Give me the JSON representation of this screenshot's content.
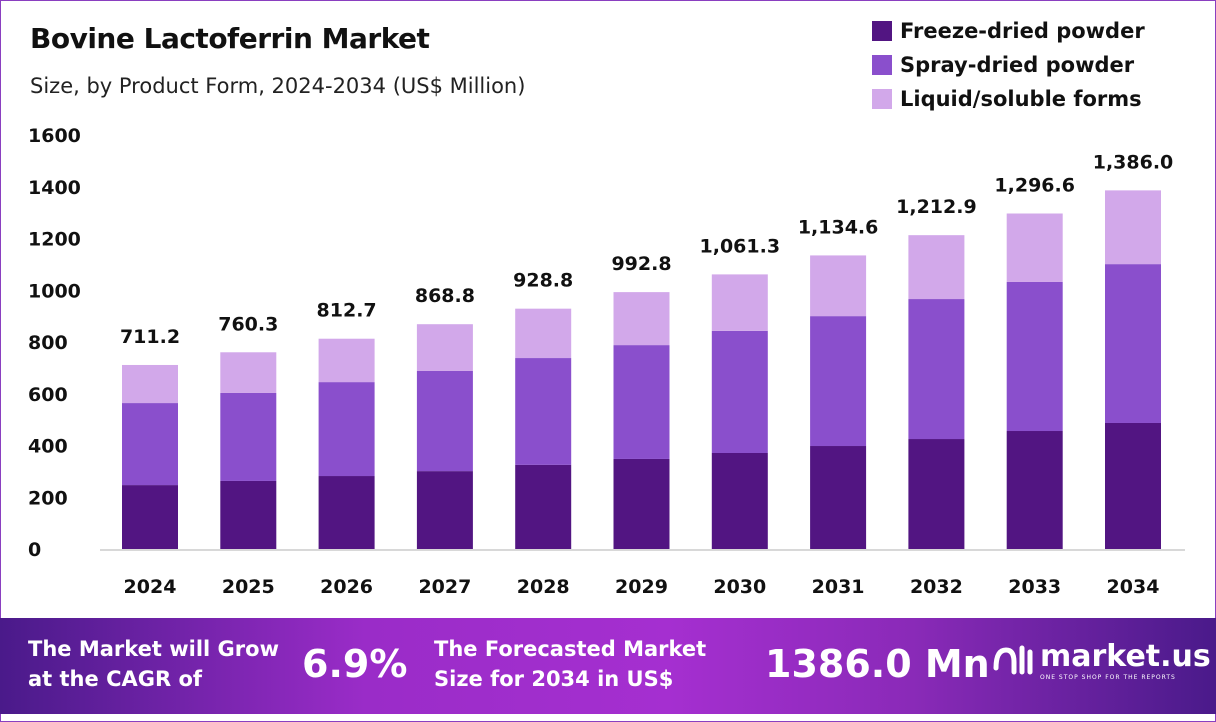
{
  "colors": {
    "freeze": "#521582",
    "spray": "#8a4fcc",
    "liquid": "#d2a8ea",
    "border": "#8a3fc0"
  },
  "chart_data": {
    "type": "bar",
    "stacked": true,
    "title": "Bovine Lactoferrin Market",
    "subtitle": "Size, by Product Form, 2024-2034 (US$ Million)",
    "categories": [
      "2024",
      "2025",
      "2026",
      "2027",
      "2028",
      "2029",
      "2030",
      "2031",
      "2032",
      "2033",
      "2034"
    ],
    "series": [
      {
        "name": "Freeze-dried powder",
        "values": [
          247,
          263,
          282,
          301,
          325,
          348,
          371,
          398,
          425,
          456,
          487
        ]
      },
      {
        "name": "Spray-dried powder",
        "values": [
          317,
          340,
          363,
          387,
          413,
          440,
          472,
          502,
          541,
          576,
          614
        ]
      },
      {
        "name": "Liquid/soluble forms",
        "values": [
          147.2,
          157.3,
          167.7,
          180.8,
          190.8,
          204.8,
          218.3,
          234.6,
          246.9,
          264.6,
          285.0
        ]
      }
    ],
    "totals": [
      "711.2",
      "760.3",
      "812.7",
      "868.8",
      "928.8",
      "992.8",
      "1,061.3",
      "1,134.6",
      "1,212.9",
      "1,296.6",
      "1,386.0"
    ],
    "yticks": [
      "0",
      "200",
      "400",
      "600",
      "800",
      "1000",
      "1200",
      "1400",
      "1600"
    ],
    "ylim": [
      0,
      1600
    ],
    "grid": false,
    "legend": "top-right"
  },
  "footer": {
    "cagr_text_1": "The Market will Grow",
    "cagr_text_2": "at the CAGR of",
    "cagr_value": "6.9%",
    "forecast_text_1": "The Forecasted Market",
    "forecast_text_2": "Size for 2034 in US$",
    "forecast_value": "1386.0 Mn",
    "logo_name": "market.us",
    "logo_tagline": "ONE STOP SHOP FOR THE REPORTS"
  }
}
